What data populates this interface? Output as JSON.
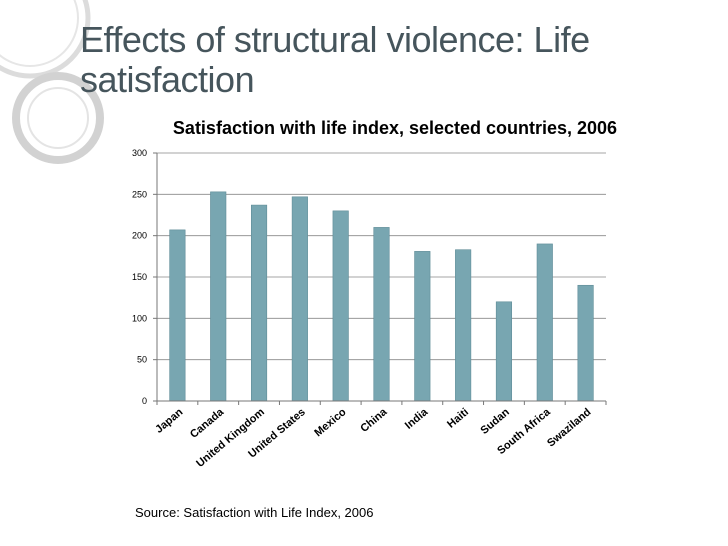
{
  "slide": {
    "title": "Effects of structural violence: Life satisfaction",
    "source": "Source:  Satisfaction with Life Index, 2006"
  },
  "colors": {
    "bar": "#78a6b1",
    "bar_stroke": "#5f8c97",
    "title": "#46555c",
    "deco": "#d7d7d7"
  },
  "chart_data": {
    "type": "bar",
    "title": "Satisfaction with life index, selected countries, 2006",
    "xlabel": "",
    "ylabel": "",
    "categories": [
      "Japan",
      "Canada",
      "United Kingdom",
      "United States",
      "Mexico",
      "China",
      "India",
      "Haiti",
      "Sudan",
      "South Africa",
      "Swaziland"
    ],
    "values": [
      207,
      253,
      237,
      247,
      230,
      210,
      181,
      183,
      120,
      190,
      140
    ],
    "ylim": [
      0,
      300
    ],
    "yticks": [
      0,
      50,
      100,
      150,
      200,
      250,
      300
    ],
    "grid": true,
    "legend": "none"
  }
}
